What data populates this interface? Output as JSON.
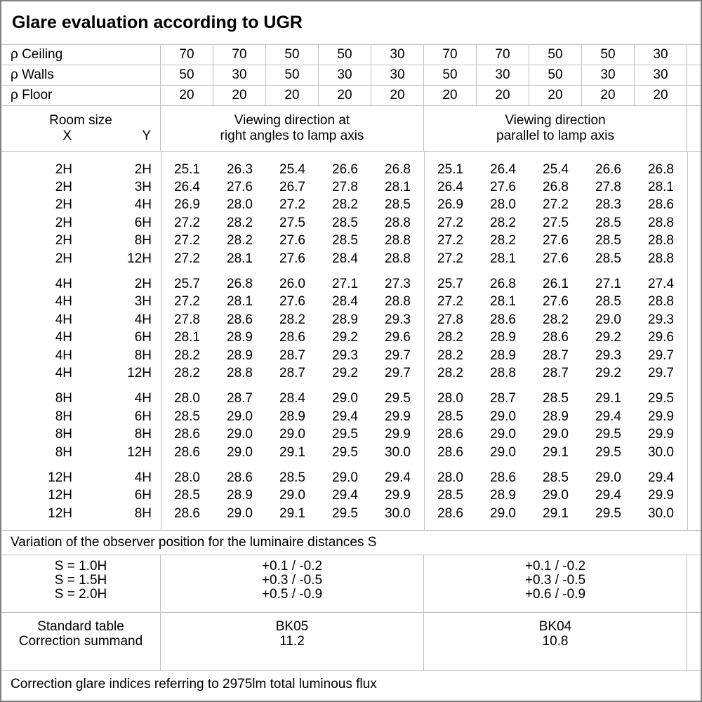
{
  "title": "Glare evaluation according to UGR",
  "reflectance_rows": [
    {
      "label": "ρ Ceiling",
      "values": [
        "70",
        "70",
        "50",
        "50",
        "30",
        "70",
        "70",
        "50",
        "50",
        "30"
      ]
    },
    {
      "label": "ρ Walls",
      "values": [
        "50",
        "30",
        "50",
        "30",
        "30",
        "50",
        "30",
        "50",
        "30",
        "30"
      ]
    },
    {
      "label": "ρ Floor",
      "values": [
        "20",
        "20",
        "20",
        "20",
        "20",
        "20",
        "20",
        "20",
        "20",
        "20"
      ]
    }
  ],
  "header": {
    "room_size": "Room size",
    "x_label": "X",
    "y_label": "Y",
    "left_group": {
      "line1": "Viewing direction at",
      "line2": "right angles to lamp axis"
    },
    "right_group": {
      "line1": "Viewing direction",
      "line2": "parallel to lamp axis"
    }
  },
  "ugr_blocks": [
    {
      "rows": [
        {
          "x": "2H",
          "y": "2H",
          "ugr": [
            "25.1",
            "26.3",
            "25.4",
            "26.6",
            "26.8",
            "25.1",
            "26.4",
            "25.4",
            "26.6",
            "26.8"
          ]
        },
        {
          "x": "2H",
          "y": "3H",
          "ugr": [
            "26.4",
            "27.6",
            "26.7",
            "27.8",
            "28.1",
            "26.4",
            "27.6",
            "26.8",
            "27.8",
            "28.1"
          ]
        },
        {
          "x": "2H",
          "y": "4H",
          "ugr": [
            "26.9",
            "28.0",
            "27.2",
            "28.2",
            "28.5",
            "26.9",
            "28.0",
            "27.2",
            "28.3",
            "28.6"
          ]
        },
        {
          "x": "2H",
          "y": "6H",
          "ugr": [
            "27.2",
            "28.2",
            "27.5",
            "28.5",
            "28.8",
            "27.2",
            "28.2",
            "27.5",
            "28.5",
            "28.8"
          ]
        },
        {
          "x": "2H",
          "y": "8H",
          "ugr": [
            "27.2",
            "28.2",
            "27.6",
            "28.5",
            "28.8",
            "27.2",
            "28.2",
            "27.6",
            "28.5",
            "28.8"
          ]
        },
        {
          "x": "2H",
          "y": "12H",
          "ugr": [
            "27.2",
            "28.1",
            "27.6",
            "28.4",
            "28.8",
            "27.2",
            "28.1",
            "27.6",
            "28.5",
            "28.8"
          ]
        }
      ]
    },
    {
      "rows": [
        {
          "x": "4H",
          "y": "2H",
          "ugr": [
            "25.7",
            "26.8",
            "26.0",
            "27.1",
            "27.3",
            "25.7",
            "26.8",
            "26.1",
            "27.1",
            "27.4"
          ]
        },
        {
          "x": "4H",
          "y": "3H",
          "ugr": [
            "27.2",
            "28.1",
            "27.6",
            "28.4",
            "28.8",
            "27.2",
            "28.1",
            "27.6",
            "28.5",
            "28.8"
          ]
        },
        {
          "x": "4H",
          "y": "4H",
          "ugr": [
            "27.8",
            "28.6",
            "28.2",
            "28.9",
            "29.3",
            "27.8",
            "28.6",
            "28.2",
            "29.0",
            "29.3"
          ]
        },
        {
          "x": "4H",
          "y": "6H",
          "ugr": [
            "28.1",
            "28.9",
            "28.6",
            "29.2",
            "29.6",
            "28.2",
            "28.9",
            "28.6",
            "29.2",
            "29.6"
          ]
        },
        {
          "x": "4H",
          "y": "8H",
          "ugr": [
            "28.2",
            "28.9",
            "28.7",
            "29.3",
            "29.7",
            "28.2",
            "28.9",
            "28.7",
            "29.3",
            "29.7"
          ]
        },
        {
          "x": "4H",
          "y": "12H",
          "ugr": [
            "28.2",
            "28.8",
            "28.7",
            "29.2",
            "29.7",
            "28.2",
            "28.8",
            "28.7",
            "29.2",
            "29.7"
          ]
        }
      ]
    },
    {
      "rows": [
        {
          "x": "8H",
          "y": "4H",
          "ugr": [
            "28.0",
            "28.7",
            "28.4",
            "29.0",
            "29.5",
            "28.0",
            "28.7",
            "28.5",
            "29.1",
            "29.5"
          ]
        },
        {
          "x": "8H",
          "y": "6H",
          "ugr": [
            "28.5",
            "29.0",
            "28.9",
            "29.4",
            "29.9",
            "28.5",
            "29.0",
            "28.9",
            "29.4",
            "29.9"
          ]
        },
        {
          "x": "8H",
          "y": "8H",
          "ugr": [
            "28.6",
            "29.0",
            "29.0",
            "29.5",
            "29.9",
            "28.6",
            "29.0",
            "29.0",
            "29.5",
            "29.9"
          ]
        },
        {
          "x": "8H",
          "y": "12H",
          "ugr": [
            "28.6",
            "29.0",
            "29.1",
            "29.5",
            "30.0",
            "28.6",
            "29.0",
            "29.1",
            "29.5",
            "30.0"
          ]
        }
      ]
    },
    {
      "rows": [
        {
          "x": "12H",
          "y": "4H",
          "ugr": [
            "28.0",
            "28.6",
            "28.5",
            "29.0",
            "29.4",
            "28.0",
            "28.6",
            "28.5",
            "29.0",
            "29.4"
          ]
        },
        {
          "x": "12H",
          "y": "6H",
          "ugr": [
            "28.5",
            "28.9",
            "29.0",
            "29.4",
            "29.9",
            "28.5",
            "28.9",
            "29.0",
            "29.4",
            "29.9"
          ]
        },
        {
          "x": "12H",
          "y": "8H",
          "ugr": [
            "28.6",
            "29.0",
            "29.1",
            "29.5",
            "30.0",
            "28.6",
            "29.0",
            "29.1",
            "29.5",
            "30.0"
          ]
        }
      ]
    }
  ],
  "variation_note": "Variation of the observer position for the luminaire distances S",
  "variation_rows": [
    {
      "label": "S = 1.0H",
      "left": "+0.1 / -0.2",
      "right": "+0.1 / -0.2"
    },
    {
      "label": "S = 1.5H",
      "left": "+0.3 / -0.5",
      "right": "+0.3 / -0.5"
    },
    {
      "label": "S = 2.0H",
      "left": "+0.5 / -0.9",
      "right": "+0.6 / -0.9"
    }
  ],
  "summary_rows": [
    {
      "label": "Standard table",
      "left": "BK05",
      "right": "BK04"
    },
    {
      "label": "Correction summand",
      "left": "11.2",
      "right": "10.8"
    }
  ],
  "footer_note": "Correction glare indices referring to 2975lm total luminous flux",
  "colors": {
    "background": "#ffffff",
    "text": "#000000",
    "grid_line": "#c0c0c0",
    "outer_border": "#808080"
  }
}
